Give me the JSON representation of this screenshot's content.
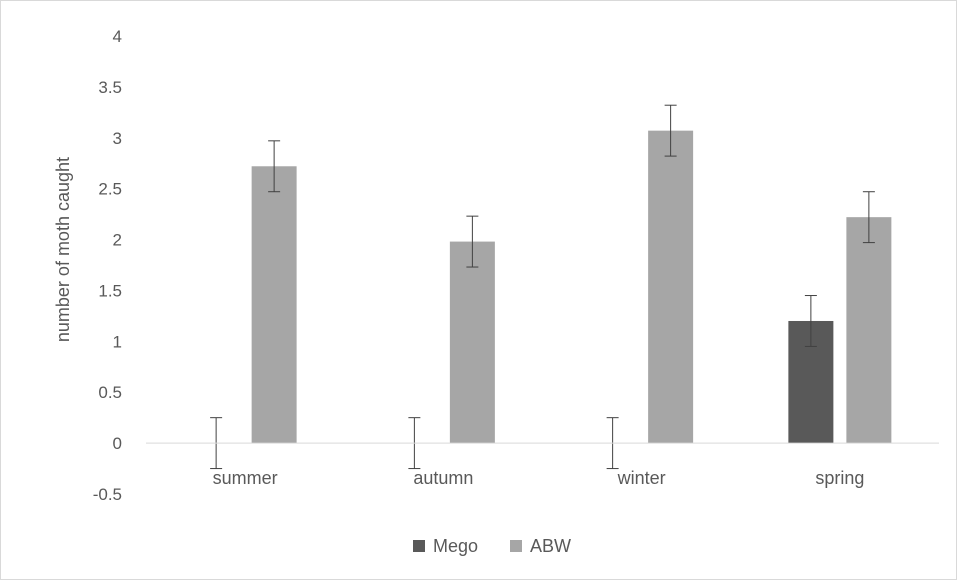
{
  "chart_data": {
    "type": "bar",
    "title": "",
    "xlabel": "",
    "ylabel": "number of moth caught",
    "ylim": [
      -0.5,
      4
    ],
    "yticks": [
      "4",
      "3.5",
      "3",
      "2.5",
      "2",
      "1.5",
      "1",
      "0.5",
      "0",
      "-0.5"
    ],
    "categories": [
      "summer",
      "autumn",
      "winter",
      "spring"
    ],
    "series": [
      {
        "name": "Mego",
        "color": "#595959",
        "values": [
          0,
          0,
          0,
          1.2
        ],
        "errors": [
          0.25,
          0.25,
          0.25,
          0.25
        ]
      },
      {
        "name": "ABW",
        "color": "#a6a6a6",
        "values": [
          2.72,
          1.98,
          3.07,
          2.22
        ],
        "errors": [
          0.25,
          0.25,
          0.25,
          0.25
        ]
      }
    ],
    "grid": false,
    "legend": "bottom"
  }
}
